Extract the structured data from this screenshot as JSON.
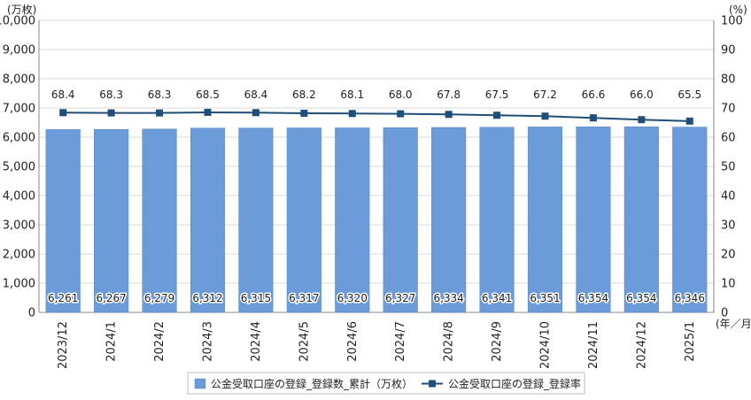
{
  "chart_data": {
    "type": "bar",
    "left_unit": "(万枚)",
    "right_unit": "(%)",
    "x_unit": "(年／月)",
    "categories": [
      "2023/12",
      "2024/1",
      "2024/2",
      "2024/3",
      "2024/4",
      "2024/5",
      "2024/6",
      "2024/7",
      "2024/8",
      "2024/9",
      "2024/10",
      "2024/11",
      "2024/12",
      "2025/1"
    ],
    "series": [
      {
        "name": "公金受取口座の登録_登録数_累計（万枚）",
        "type": "bar",
        "axis": "left",
        "color": "#6b9bd8",
        "values": [
          6261,
          6267,
          6279,
          6312,
          6315,
          6317,
          6320,
          6327,
          6334,
          6341,
          6351,
          6354,
          6354,
          6346
        ],
        "labels": [
          "6,261",
          "6,267",
          "6,279",
          "6,312",
          "6,315",
          "6,317",
          "6,320",
          "6,327",
          "6,334",
          "6,341",
          "6,351",
          "6,354",
          "6,354",
          "6,346"
        ]
      },
      {
        "name": "公金受取口座の登録_登録率",
        "type": "line",
        "axis": "right",
        "color": "#1f4e79",
        "values": [
          68.4,
          68.3,
          68.3,
          68.5,
          68.4,
          68.2,
          68.1,
          68.0,
          67.8,
          67.5,
          67.2,
          66.6,
          66.0,
          65.5
        ],
        "labels": [
          "68.4",
          "68.3",
          "68.3",
          "68.5",
          "68.4",
          "68.2",
          "68.1",
          "68.0",
          "67.8",
          "67.5",
          "67.2",
          "66.6",
          "66.0",
          "65.5"
        ]
      }
    ],
    "left_ylim": [
      0,
      10000
    ],
    "left_ticks": [
      "0",
      "1,000",
      "2,000",
      "3,000",
      "4,000",
      "5,000",
      "6,000",
      "7,000",
      "8,000",
      "9,000",
      "10,000"
    ],
    "right_ylim": [
      0,
      100
    ],
    "right_ticks": [
      "0",
      "10",
      "20",
      "30",
      "40",
      "50",
      "60",
      "70",
      "80",
      "90",
      "100"
    ],
    "grid": true,
    "legend_position": "bottom"
  }
}
